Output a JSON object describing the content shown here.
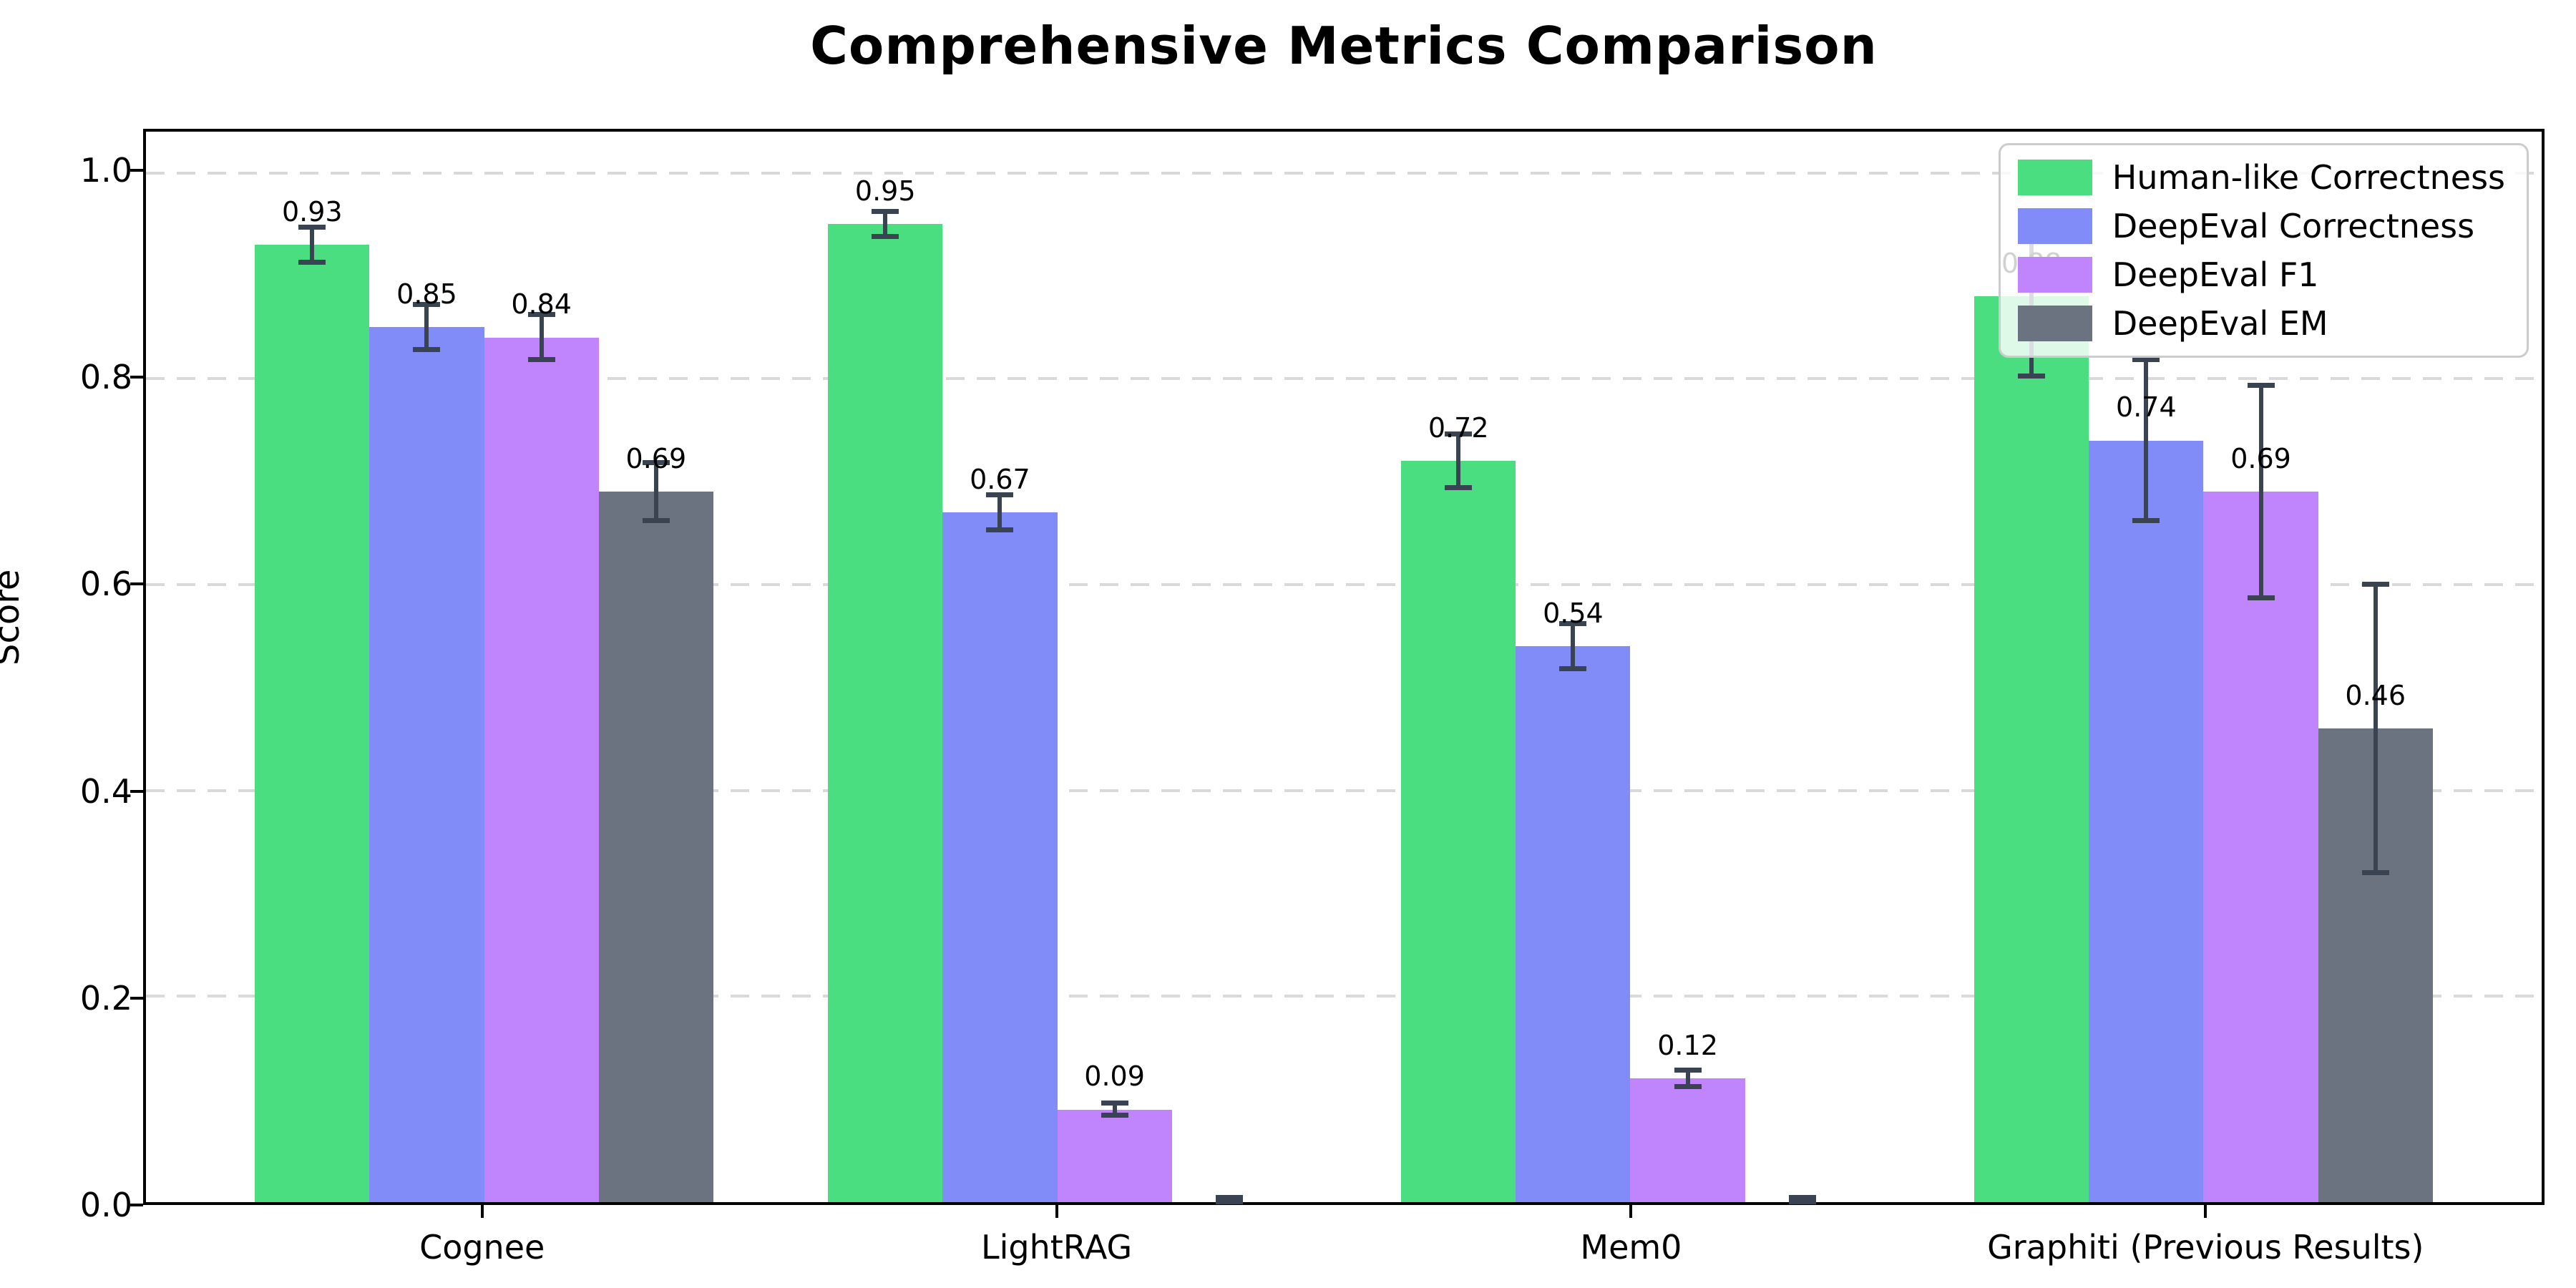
{
  "header": {
    "title": "Comprehensive Metrics Comparison"
  },
  "chart_data": {
    "type": "bar",
    "title": "Comprehensive Metrics Comparison",
    "xlabel": "",
    "ylabel": "Score",
    "categories": [
      "Cognee",
      "LightRAG",
      "Mem0",
      "Graphiti (Previous Results)"
    ],
    "series": [
      {
        "name": "Human-like Correctness",
        "color": "#4ade80",
        "values": [
          0.93,
          0.95,
          0.72,
          0.88
        ],
        "errors": [
          0.017,
          0.012,
          0.026,
          0.078
        ],
        "labels": [
          "0.93",
          "0.95",
          "0.72",
          "0.88"
        ]
      },
      {
        "name": "DeepEval Correctness",
        "color": "#818cf8",
        "values": [
          0.85,
          0.67,
          0.54,
          0.74
        ],
        "errors": [
          0.022,
          0.017,
          0.022,
          0.078
        ],
        "labels": [
          "0.85",
          "0.67",
          "0.54",
          "0.74"
        ]
      },
      {
        "name": "DeepEval F1",
        "color": "#c084fc",
        "values": [
          0.84,
          0.09,
          0.12,
          0.69
        ],
        "errors": [
          0.022,
          0.006,
          0.008,
          0.103
        ],
        "labels": [
          "0.84",
          "0.09",
          "0.12",
          "0.69"
        ]
      },
      {
        "name": "DeepEval EM",
        "color": "#6b7280",
        "values": [
          0.69,
          0.0,
          0.0,
          0.46
        ],
        "errors": [
          0.028,
          0.004,
          0.004,
          0.14
        ],
        "labels": [
          "0.69",
          "",
          "",
          "0.46"
        ]
      }
    ],
    "yticks": [
      "0.0",
      "0.2",
      "0.4",
      "0.6",
      "0.8",
      "1.0"
    ],
    "ylim": [
      0,
      1.04
    ],
    "xlim": [
      -0.59,
      3.59
    ],
    "bar_width": 0.2,
    "grid": "horizontal dashed",
    "grid_color": "#d9d9d9",
    "error_bar_color": "#3a4352",
    "legend_position": "upper right",
    "background_color": "#ffffff",
    "axis_color": "#000000"
  }
}
